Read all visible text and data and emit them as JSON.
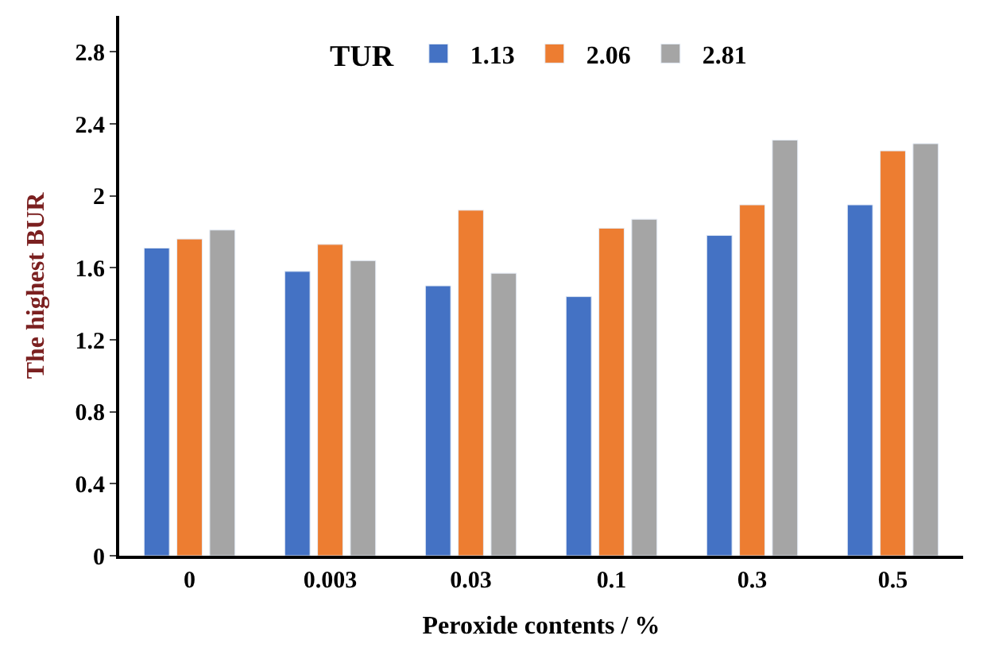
{
  "chart_data": {
    "type": "bar",
    "xlabel": "Peroxide contents / %",
    "ylabel": "The highest BUR",
    "legend_title": "TUR",
    "legend": "top",
    "categories": [
      "0",
      "0.003",
      "0.03",
      "0.1",
      "0.3",
      "0.5"
    ],
    "ylim": [
      0,
      3
    ],
    "yticks": [
      0,
      0.4,
      0.8,
      1.2,
      1.6,
      2,
      2.4,
      2.8
    ],
    "series": [
      {
        "name": "1.13",
        "color": "#4472c4",
        "values": [
          1.71,
          1.58,
          1.5,
          1.44,
          1.78,
          1.95
        ]
      },
      {
        "name": "2.06",
        "color": "#ed7d31",
        "values": [
          1.76,
          1.73,
          1.92,
          1.82,
          1.95,
          2.25
        ]
      },
      {
        "name": "2.81",
        "color": "#a5a5a5",
        "values": [
          1.81,
          1.64,
          1.57,
          1.87,
          2.31,
          2.29
        ]
      }
    ]
  }
}
